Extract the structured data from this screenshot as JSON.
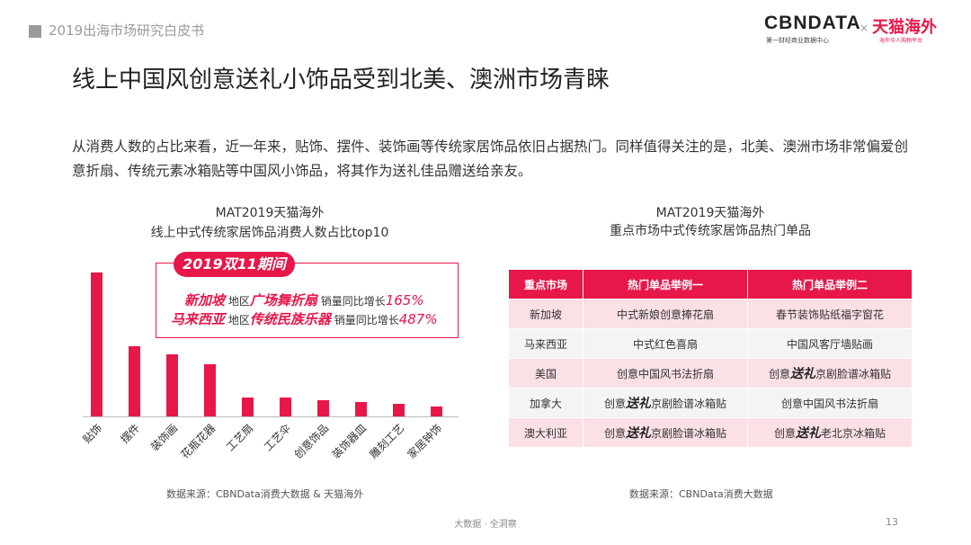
{
  "header": {
    "report_title": "2019出海市场研究白皮书",
    "logo_cbn": "CBNDATA",
    "logo_cbn_sub": "第一财经商业数据中心",
    "logo_x": "×",
    "logo_tmall": "天猫海外",
    "logo_tmall_sub": "海外华人购物平台"
  },
  "slide_title": "线上中国风创意送礼小饰品受到北美、澳洲市场青睐",
  "description": "从消费人数的占比来看，近一年来，贴饰、摆件、装饰画等传统家居饰品依旧占据热门。同样值得关注的是，北美、澳洲市场非常偏爱创意折扇、传统元素冰箱贴等中国风小饰品，将其作为送礼佳品赠送给亲友。",
  "chart_data": {
    "type": "bar",
    "title": "MAT2019天猫海外",
    "subtitle": "线上中式传统家居饰品消费人数占比top10",
    "categories": [
      "贴饰",
      "摆件",
      "装饰画",
      "花瓶花器",
      "工艺扇",
      "工艺伞",
      "创意饰品",
      "装饰器皿",
      "雕刻工艺",
      "家居钟饰"
    ],
    "values": [
      100,
      49,
      43,
      36,
      13,
      13,
      11,
      10,
      9,
      7
    ],
    "color": "#e8174a",
    "source": "数据来源：CBNData消费大数据 & 天猫海外"
  },
  "callout": {
    "badge": "2019双11期间",
    "line1": {
      "region": "新加坡",
      "suffix1": "地区",
      "product": "广场舞折扇",
      "suffix2": "销量同比增长",
      "pct": "165%"
    },
    "line2": {
      "region": "马来西亚",
      "suffix1": "地区",
      "product": "传统民族乐器",
      "suffix2": "销量同比增长",
      "pct": "487%"
    }
  },
  "table": {
    "title": "MAT2019天猫海外",
    "subtitle": "重点市场中式传统家居饰品热门单品",
    "headers": [
      "重点市场",
      "热门单品举例一",
      "热门单品举例二"
    ],
    "rows": [
      {
        "market": "新加坡",
        "item1_pre": "中式新娘创意捧花扇",
        "item1_em": "",
        "item1_post": "",
        "item2_pre": "春节装饰贴纸福字窗花",
        "item2_em": "",
        "item2_post": ""
      },
      {
        "market": "马来西亚",
        "item1_pre": "中式红色喜扇",
        "item1_em": "",
        "item1_post": "",
        "item2_pre": "中国风客厅墙贴画",
        "item2_em": "",
        "item2_post": ""
      },
      {
        "market": "美国",
        "item1_pre": "创意中国风书法折扇",
        "item1_em": "",
        "item1_post": "",
        "item2_pre": "创意",
        "item2_em": "送礼",
        "item2_post": "京剧脸谱冰箱贴"
      },
      {
        "market": "加拿大",
        "item1_pre": "创意",
        "item1_em": "送礼",
        "item1_post": "京剧脸谱冰箱贴",
        "item2_pre": "创意中国风书法折扇",
        "item2_em": "",
        "item2_post": ""
      },
      {
        "market": "澳大利亚",
        "item1_pre": "创意",
        "item1_em": "送礼",
        "item1_post": "京剧脸谱冰箱贴",
        "item2_pre": "创意",
        "item2_em": "送礼",
        "item2_post": "老北京冰箱贴"
      }
    ],
    "source": "数据来源：CBNData消费大数据"
  },
  "footer": {
    "text": "大数据 · 全洞察",
    "page": "13"
  }
}
